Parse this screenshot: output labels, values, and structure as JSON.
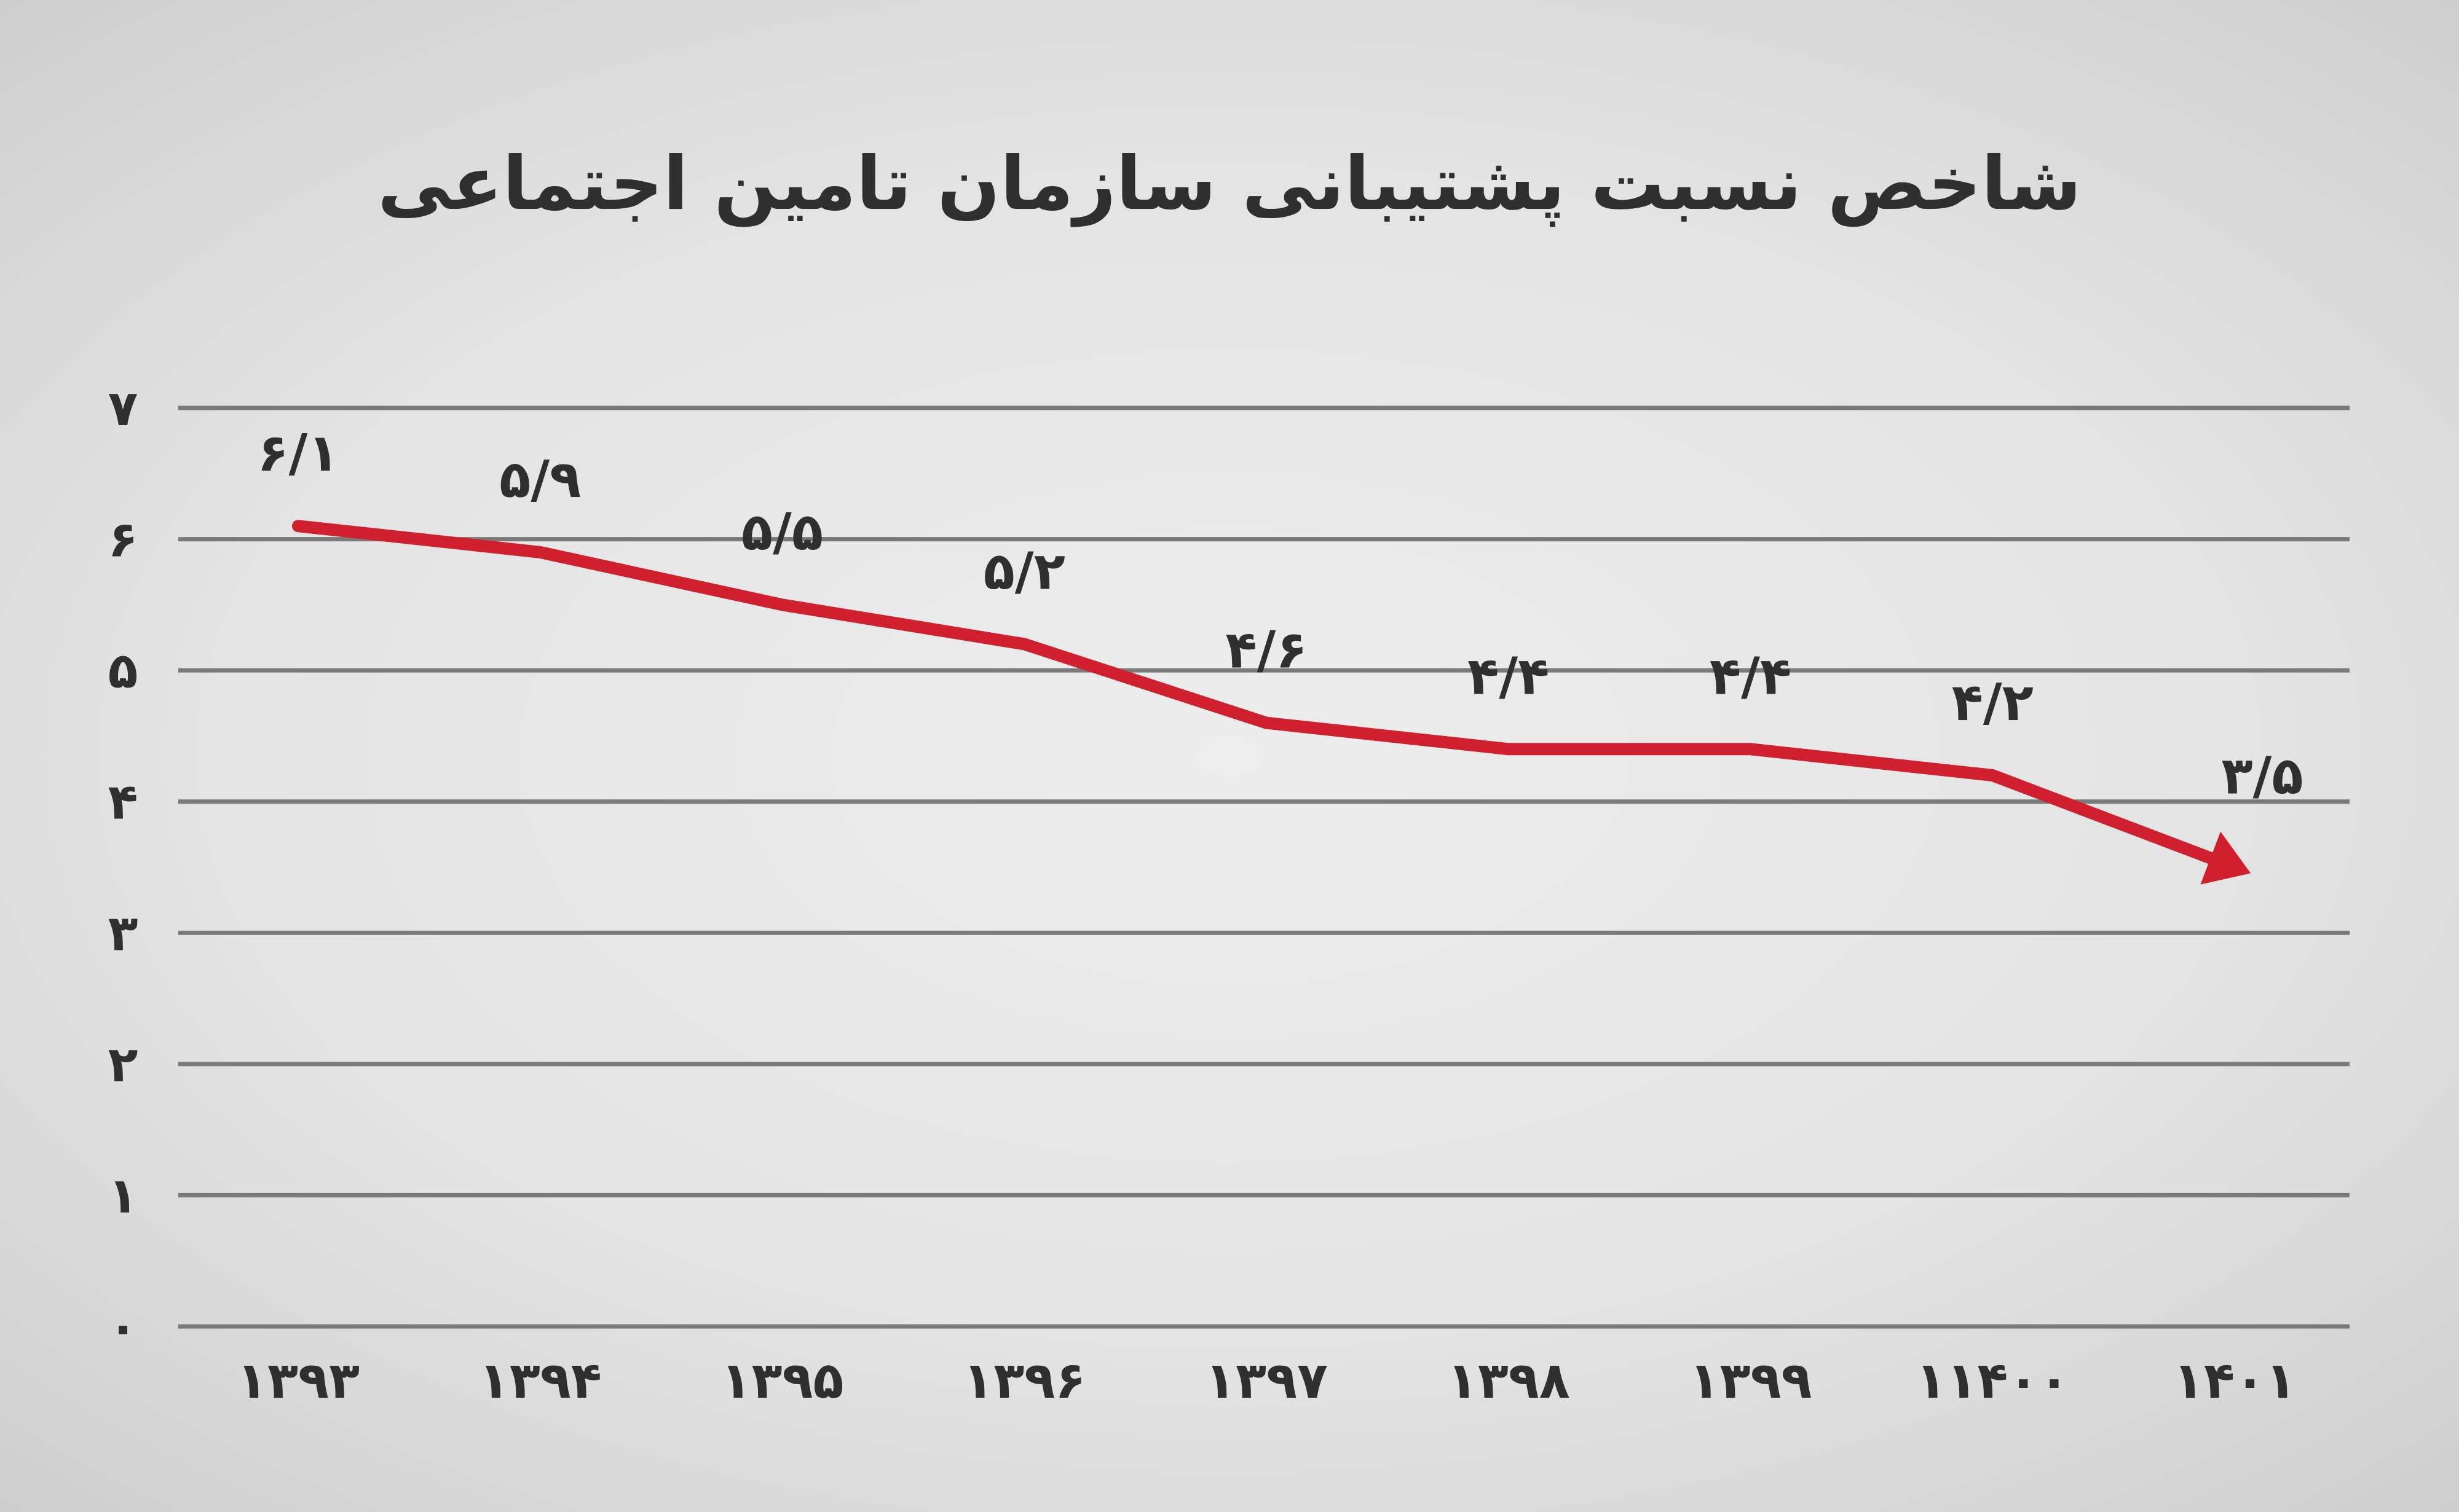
{
  "chart_data": {
    "type": "line",
    "title": "شاخص نسبت پشتیبانی سازمان تامین اجتماعی",
    "xlabel": "",
    "ylabel": "",
    "ylim": [
      0,
      7
    ],
    "grid": true,
    "legend": "none",
    "categories": [
      "۱۳۹۳",
      "۱۳۹۴",
      "۱۳۹۵",
      "۱۳۹۶",
      "۱۳۹۷",
      "۱۳۹۸",
      "۱۳۹۹",
      "۱۱۴۰۰",
      "۱۴۰۱"
    ],
    "y_ticks": [
      "۰",
      "۱",
      "۲",
      "۳",
      "۴",
      "۵",
      "۶",
      "۷"
    ],
    "series": [
      {
        "values": [
          6.1,
          5.9,
          5.5,
          5.2,
          4.6,
          4.4,
          4.4,
          4.2,
          3.5
        ],
        "point_labels": [
          "۶/۱",
          "۵/۹",
          "۵/۵",
          "۵/۲",
          "۴/۶",
          "۴/۴",
          "۴/۴",
          "۴/۲",
          "۳/۵"
        ],
        "color": "#d0202f"
      }
    ]
  }
}
